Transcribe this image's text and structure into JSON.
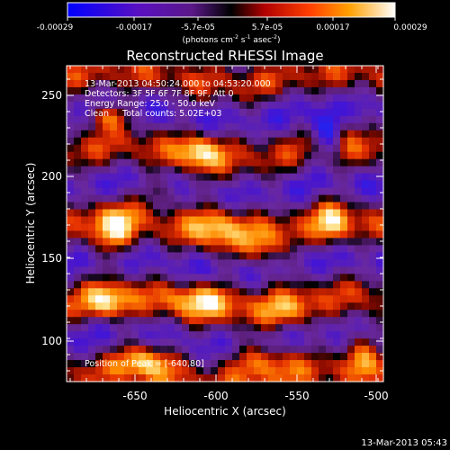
{
  "colorbar": {
    "ticks": [
      "-0.00029",
      "-0.00017",
      "-5.7e-05",
      "5.7e-05",
      "0.00017",
      "0.00029"
    ],
    "unit_main": "(photons cm",
    "unit_exp1": "-2",
    "unit_mid": " s",
    "unit_exp2": "-1",
    "unit_end": " asec",
    "unit_exp3": "-2",
    "unit_close": ")"
  },
  "plot": {
    "title": "Reconstructed RHESSI Image",
    "xlabel": "Heliocentric X (arcsec)",
    "ylabel": "Heliocentric Y (arcsec)",
    "x_ticks": [
      "-650",
      "-600",
      "-550",
      "-500"
    ],
    "y_ticks": [
      "250",
      "200",
      "150",
      "100"
    ],
    "xlim": [
      -675,
      -495
    ],
    "ylim": [
      72,
      262
    ]
  },
  "annotations": {
    "time_range": "13-Mar-2013 04:50:24.000 to 04:53:20.000",
    "detectors": "Detectors: 3F 5F 6F 7F 8F 9F, Att 0",
    "energy": "Energy Range: 25.0 - 50.0 keV",
    "method": "Clean     Total counts: 5.02E+03",
    "peak": "Position of Peak = [-640,80]"
  },
  "footer": {
    "timestamp": "13-Mar-2013 05:43"
  },
  "colors": {
    "background": "#000000",
    "foreground": "#ffffff",
    "colormap": [
      "#0000ff",
      "#3a00c8",
      "#6a1fa8",
      "#000000",
      "#b01000",
      "#ff3300",
      "#ffa000",
      "#ffe0a0",
      "#ffffff"
    ]
  }
}
